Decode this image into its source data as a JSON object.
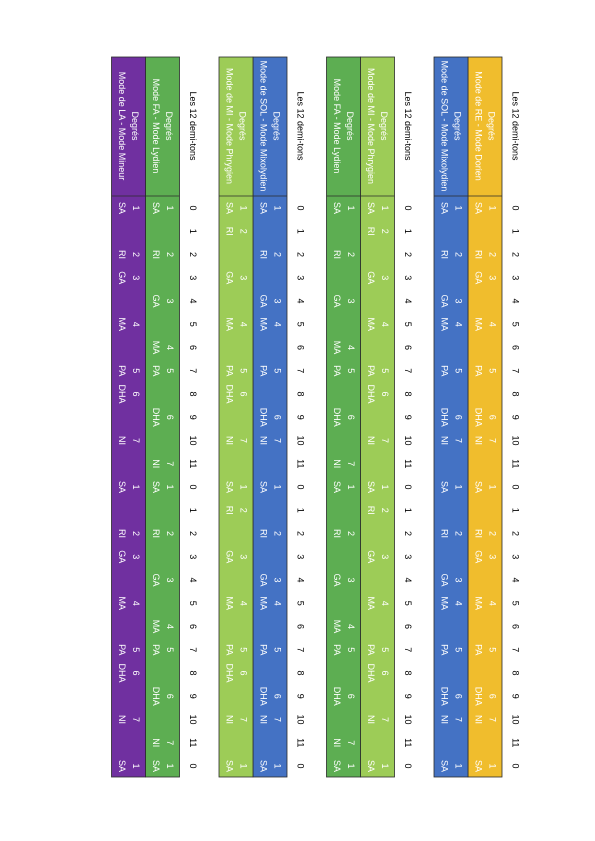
{
  "blocks": [
    {
      "semitones_label": "Les 12 demi-tons",
      "semitones": [
        0,
        1,
        2,
        3,
        4,
        5,
        6,
        7,
        8,
        9,
        10,
        11,
        0,
        1,
        2,
        3,
        4,
        5,
        6,
        7,
        8,
        9,
        10,
        11,
        0
      ],
      "modes": [
        {
          "name": "Mode de RE - Mode Dorien",
          "degrees_label": "Degrés",
          "color": "#f0bd2d",
          "degrees": [
            1,
            null,
            2,
            3,
            null,
            4,
            null,
            5,
            null,
            6,
            7,
            null,
            1,
            null,
            2,
            3,
            null,
            4,
            null,
            5,
            null,
            6,
            7,
            null,
            1
          ],
          "notes": [
            "SA",
            null,
            "RI",
            "GA",
            null,
            "MA",
            null,
            "PA",
            null,
            "DHA",
            "NI",
            null,
            "SA",
            null,
            "RI",
            "GA",
            null,
            "MA",
            null,
            "PA",
            null,
            "DHA",
            "NI",
            null,
            "SA"
          ]
        },
        {
          "name": "Mode de SOL - Mode Mixolydien",
          "degrees_label": "Degrés",
          "color": "#4472c4",
          "degrees": [
            1,
            null,
            2,
            null,
            3,
            4,
            null,
            5,
            null,
            6,
            7,
            null,
            1,
            null,
            2,
            null,
            3,
            4,
            null,
            5,
            null,
            6,
            7,
            null,
            1
          ],
          "notes": [
            "SA",
            null,
            "RI",
            null,
            "GA",
            "MA",
            null,
            "PA",
            null,
            "DHA",
            "NI",
            null,
            "SA",
            null,
            "RI",
            null,
            "GA",
            "MA",
            null,
            "PA",
            null,
            "DHA",
            "NI",
            null,
            "SA"
          ]
        }
      ]
    },
    {
      "semitones_label": "Les 12 demi-tons",
      "semitones": [
        0,
        1,
        2,
        3,
        4,
        5,
        6,
        7,
        8,
        9,
        10,
        11,
        0,
        1,
        2,
        3,
        4,
        5,
        6,
        7,
        8,
        9,
        10,
        11,
        0
      ],
      "modes": [
        {
          "name": "Mode de MI - Mode Phrygien",
          "degrees_label": "Degrés",
          "color": "#9dcc57",
          "degrees": [
            1,
            2,
            null,
            3,
            null,
            4,
            null,
            5,
            6,
            null,
            7,
            null,
            1,
            2,
            null,
            3,
            null,
            4,
            null,
            5,
            6,
            null,
            7,
            null,
            1
          ],
          "notes": [
            "SA",
            "RI",
            null,
            "GA",
            null,
            "MA",
            null,
            "PA",
            "DHA",
            null,
            "NI",
            null,
            "SA",
            "RI",
            null,
            "GA",
            null,
            "MA",
            null,
            "PA",
            "DHA",
            null,
            "NI",
            null,
            "SA"
          ]
        },
        {
          "name": "Mode FA - Mode Lydien",
          "degrees_label": "Degrés",
          "color": "#5dae52",
          "degrees": [
            1,
            null,
            2,
            null,
            3,
            null,
            4,
            5,
            null,
            6,
            null,
            7,
            1,
            null,
            2,
            null,
            3,
            null,
            4,
            5,
            null,
            6,
            null,
            7,
            1
          ],
          "notes": [
            "SA",
            null,
            "RI",
            null,
            "GA",
            null,
            "MA",
            "PA",
            null,
            "DHA",
            null,
            "NI",
            "SA",
            null,
            "RI",
            null,
            "GA",
            null,
            "MA",
            "PA",
            null,
            "DHA",
            null,
            "NI",
            "SA"
          ]
        }
      ]
    },
    {
      "semitones_label": "Les 12 demi-tons",
      "semitones": [
        0,
        1,
        2,
        3,
        4,
        5,
        6,
        7,
        8,
        9,
        10,
        11,
        0,
        1,
        2,
        3,
        4,
        5,
        6,
        7,
        8,
        9,
        10,
        11,
        0
      ],
      "modes": [
        {
          "name": "Mode de SOL - Mode Mixolydien",
          "degrees_label": "Degrés",
          "color": "#4472c4",
          "degrees": [
            1,
            null,
            2,
            null,
            3,
            4,
            null,
            5,
            null,
            6,
            7,
            null,
            1,
            null,
            2,
            null,
            3,
            4,
            null,
            5,
            null,
            6,
            7,
            null,
            1
          ],
          "notes": [
            "SA",
            null,
            "RI",
            null,
            "GA",
            "MA",
            null,
            "PA",
            null,
            "DHA",
            "NI",
            null,
            "SA",
            null,
            "RI",
            null,
            "GA",
            "MA",
            null,
            "PA",
            null,
            "DHA",
            "NI",
            null,
            "SA"
          ]
        },
        {
          "name": "Mode de MI - Mode Phrygien",
          "degrees_label": "Degrés",
          "color": "#9dcc57",
          "degrees": [
            1,
            2,
            null,
            3,
            null,
            4,
            null,
            5,
            6,
            null,
            7,
            null,
            1,
            2,
            null,
            3,
            null,
            4,
            null,
            5,
            6,
            null,
            7,
            null,
            1
          ],
          "notes": [
            "SA",
            "RI",
            null,
            "GA",
            null,
            "MA",
            null,
            "PA",
            "DHA",
            null,
            "NI",
            null,
            "SA",
            "RI",
            null,
            "GA",
            null,
            "MA",
            null,
            "PA",
            "DHA",
            null,
            "NI",
            null,
            "SA"
          ]
        }
      ]
    },
    {
      "semitones_label": "Les 12 demi-tons",
      "semitones": [
        0,
        1,
        2,
        3,
        4,
        5,
        6,
        7,
        8,
        9,
        10,
        11,
        0,
        1,
        2,
        3,
        4,
        5,
        6,
        7,
        8,
        9,
        10,
        11,
        0
      ],
      "modes": [
        {
          "name": "Mode FA - Mode Lydien",
          "degrees_label": "Degrés",
          "color": "#5dae52",
          "degrees": [
            1,
            null,
            2,
            null,
            3,
            null,
            4,
            5,
            null,
            6,
            null,
            7,
            1,
            null,
            2,
            null,
            3,
            null,
            4,
            5,
            null,
            6,
            null,
            7,
            1
          ],
          "notes": [
            "SA",
            null,
            "RI",
            null,
            "GA",
            null,
            "MA",
            "PA",
            null,
            "DHA",
            null,
            "NI",
            "SA",
            null,
            "RI",
            null,
            "GA",
            null,
            "MA",
            "PA",
            null,
            "DHA",
            null,
            "NI",
            "SA"
          ]
        },
        {
          "name": "Mode de LA - Mode Mineur",
          "degrees_label": "Degrés",
          "color": "#7030a0",
          "degrees": [
            1,
            null,
            2,
            3,
            null,
            4,
            null,
            5,
            6,
            null,
            7,
            null,
            1,
            null,
            2,
            3,
            null,
            4,
            null,
            5,
            6,
            null,
            7,
            null,
            1
          ],
          "notes": [
            "SA",
            null,
            "RI",
            "GA",
            null,
            "MA",
            null,
            "PA",
            "DHA",
            null,
            "NI",
            null,
            "SA",
            null,
            "RI",
            "GA",
            null,
            "MA",
            null,
            "PA",
            "DHA",
            null,
            "NI",
            null,
            "SA"
          ]
        }
      ]
    }
  ]
}
